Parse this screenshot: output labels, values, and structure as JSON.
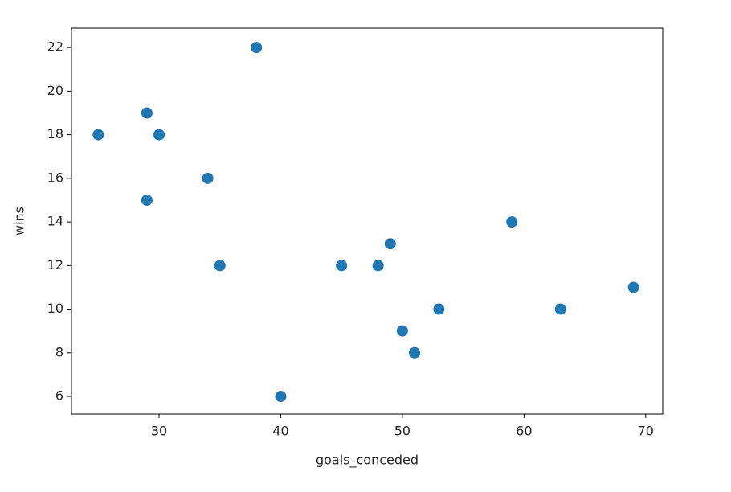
{
  "chart_data": {
    "type": "scatter",
    "x_label": "goals_conceded",
    "y_label": "wins",
    "x": [
      25,
      29,
      30,
      29,
      34,
      35,
      38,
      40,
      45,
      48,
      49,
      50,
      51,
      53,
      59,
      63,
      69
    ],
    "y": [
      18,
      19,
      18,
      15,
      16,
      12,
      22,
      6,
      12,
      12,
      13,
      9,
      8,
      10,
      14,
      10,
      11
    ],
    "color": "#1f77b4",
    "xlim": [
      22.8,
      71.4
    ],
    "xticks": [
      30,
      40,
      50,
      60,
      70
    ],
    "ylim": [
      5.19,
      22.89
    ],
    "yticks": [
      6,
      8,
      10,
      12,
      14,
      16,
      18,
      20,
      22
    ],
    "grid": false
  }
}
